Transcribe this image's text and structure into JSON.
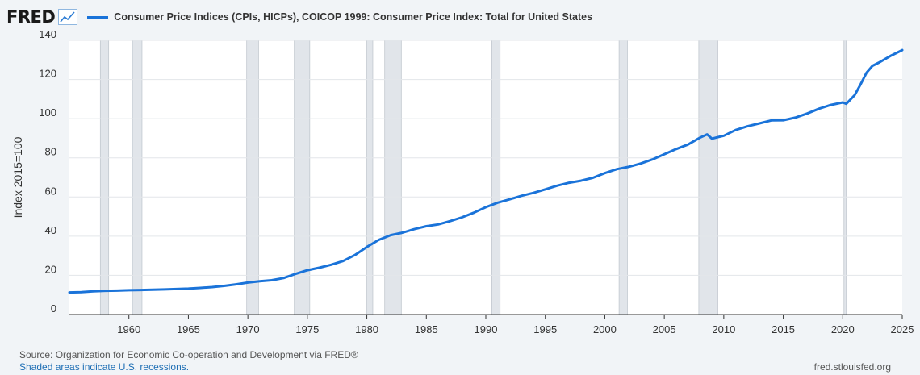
{
  "header": {
    "logo": "FRED"
  },
  "footer": {
    "source": "Source: Organization for Economic Co-operation and Development via FRED®",
    "recessions_note": "Shaded areas indicate U.S. recessions.",
    "site": "fred.stlouisfed.org"
  },
  "colors": {
    "line": "#1a73d9",
    "recession": "#e1e5ea",
    "background": "#f1f4f7",
    "plot": "#ffffff"
  },
  "chart_data": {
    "type": "line",
    "title": "",
    "xlabel": "",
    "ylabel": "Index 2015=100",
    "xlim": [
      1955,
      2025
    ],
    "ylim": [
      0,
      140
    ],
    "xticks": [
      "1960",
      "1965",
      "1970",
      "1975",
      "1980",
      "1985",
      "1990",
      "1995",
      "2000",
      "2005",
      "2010",
      "2015",
      "2020",
      "2025"
    ],
    "yticks": [
      "0",
      "20",
      "40",
      "60",
      "80",
      "100",
      "120",
      "140"
    ],
    "grid": "horizontal",
    "legend": "top",
    "recessions": [
      [
        1957.6,
        1958.3
      ],
      [
        1960.3,
        1961.1
      ],
      [
        1969.9,
        1970.9
      ],
      [
        1973.9,
        1975.2
      ],
      [
        1980.0,
        1980.5
      ],
      [
        1981.5,
        1982.9
      ],
      [
        1990.5,
        1991.2
      ],
      [
        2001.2,
        2001.9
      ],
      [
        2007.9,
        2009.5
      ],
      [
        2020.1,
        2020.3
      ]
    ],
    "series": [
      {
        "name": "Consumer Price Indices (CPIs, HICPs), COICOP 1999: Consumer Price Index: Total for United States",
        "x": [
          1955,
          1956,
          1957,
          1958,
          1959,
          1960,
          1961,
          1962,
          1963,
          1964,
          1965,
          1966,
          1967,
          1968,
          1969,
          1970,
          1971,
          1972,
          1973,
          1974,
          1975,
          1976,
          1977,
          1978,
          1979,
          1980,
          1981,
          1982,
          1983,
          1984,
          1985,
          1986,
          1987,
          1988,
          1989,
          1990,
          1991,
          1992,
          1993,
          1994,
          1995,
          1996,
          1997,
          1998,
          1999,
          2000,
          2001,
          2002,
          2003,
          2004,
          2005,
          2006,
          2007,
          2008,
          2008.6,
          2009,
          2010,
          2011,
          2012,
          2013,
          2014,
          2015,
          2016,
          2017,
          2018,
          2019,
          2020,
          2020.3,
          2021,
          2021.5,
          2022,
          2022.5,
          2023,
          2024,
          2025
        ],
        "values": [
          11.3,
          11.4,
          11.8,
          12.1,
          12.2,
          12.4,
          12.5,
          12.7,
          12.8,
          13.0,
          13.2,
          13.6,
          14.0,
          14.6,
          15.4,
          16.3,
          17.0,
          17.5,
          18.6,
          20.7,
          22.6,
          23.9,
          25.4,
          27.3,
          30.4,
          34.5,
          38.1,
          40.5,
          41.8,
          43.6,
          45.1,
          46.0,
          47.7,
          49.6,
          52.0,
          54.8,
          57.1,
          58.8,
          60.6,
          62.1,
          63.9,
          65.8,
          67.3,
          68.3,
          69.8,
          72.2,
          74.2,
          75.4,
          77.1,
          79.2,
          81.8,
          84.5,
          86.8,
          90.3,
          92.0,
          89.8,
          91.3,
          94.2,
          96.1,
          97.6,
          99.1,
          99.2,
          100.5,
          102.6,
          105.1,
          107.0,
          108.3,
          107.6,
          112.0,
          117.5,
          123.5,
          127.0,
          128.5,
          132.0,
          135.0
        ]
      }
    ]
  }
}
